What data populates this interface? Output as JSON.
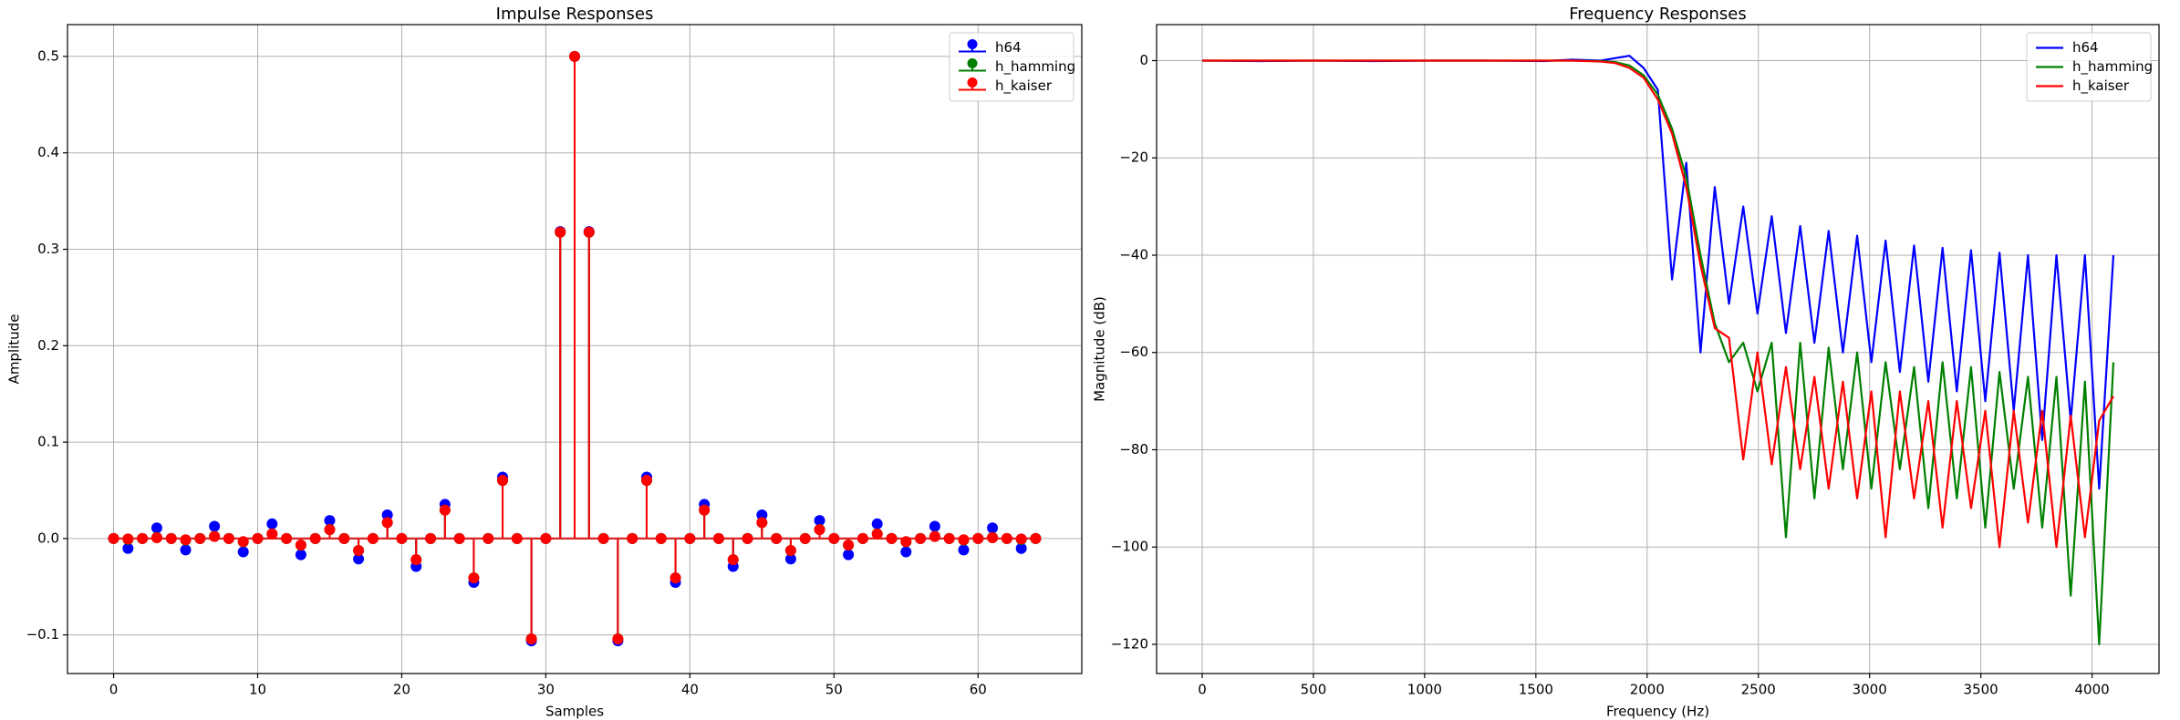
{
  "chart_data": [
    {
      "type": "stem",
      "title": "Impulse Responses",
      "xlabel": "Samples",
      "ylabel": "Amplitude",
      "x": [
        0,
        1,
        2,
        3,
        4,
        5,
        6,
        7,
        8,
        9,
        10,
        11,
        12,
        13,
        14,
        15,
        16,
        17,
        18,
        19,
        20,
        21,
        22,
        23,
        24,
        25,
        26,
        27,
        28,
        29,
        30,
        31,
        32,
        33,
        34,
        35,
        36,
        37,
        38,
        39,
        40,
        41,
        42,
        43,
        44,
        45,
        46,
        47,
        48,
        49,
        50,
        51,
        52,
        53,
        54,
        55,
        56,
        57,
        58,
        59,
        60,
        61,
        62,
        63,
        64
      ],
      "series": [
        {
          "name": "h64",
          "color": "#0000ff",
          "values": [
            0,
            -0.0103,
            0,
            0.011,
            0,
            -0.0118,
            0,
            0.0127,
            0,
            -0.0138,
            0,
            0.0152,
            0,
            -0.0168,
            0,
            0.0187,
            0,
            -0.0212,
            0,
            0.0245,
            0,
            -0.0289,
            0,
            0.0354,
            0,
            -0.0455,
            0,
            0.0637,
            0,
            -0.1061,
            0,
            0.3183,
            0.5,
            0.3183,
            0,
            -0.1061,
            0,
            0.0637,
            0,
            -0.0455,
            0,
            0.0354,
            0,
            -0.0289,
            0,
            0.0245,
            0,
            -0.0212,
            0,
            0.0187,
            0,
            -0.0168,
            0,
            0.0152,
            0,
            -0.0138,
            0,
            0.0127,
            0,
            -0.0118,
            0,
            0.011,
            0,
            -0.0103,
            0
          ]
        },
        {
          "name": "h_hamming",
          "color": "#008000",
          "values": [
            0,
            -0.0009,
            0,
            0.0011,
            0,
            -0.0016,
            0,
            0.0023,
            0,
            -0.0034,
            0,
            0.0049,
            0,
            -0.0068,
            0,
            0.0093,
            0,
            -0.0124,
            0,
            0.0165,
            0,
            -0.0219,
            0,
            0.0294,
            0,
            -0.0407,
            0,
            0.0602,
            0,
            -0.104,
            0,
            0.3176,
            0.5,
            0.3176,
            0,
            -0.104,
            0,
            0.0602,
            0,
            -0.0407,
            0,
            0.0294,
            0,
            -0.0219,
            0,
            0.0165,
            0,
            -0.0124,
            0,
            0.0093,
            0,
            -0.0068,
            0,
            0.0049,
            0,
            -0.0034,
            0,
            0.0023,
            0,
            -0.0016,
            0,
            0.0011,
            0,
            -0.0009,
            0
          ]
        },
        {
          "name": "h_kaiser",
          "color": "#ff0000",
          "values": [
            0,
            -0.0005,
            0,
            0.0008,
            0,
            -0.0013,
            0,
            0.0021,
            0,
            -0.0032,
            0,
            0.0047,
            0,
            -0.0067,
            0,
            0.0092,
            0,
            -0.0124,
            0,
            0.0166,
            0,
            -0.022,
            0,
            0.0296,
            0,
            -0.0409,
            0,
            0.0604,
            0,
            -0.1042,
            0,
            0.3177,
            0.5,
            0.3177,
            0,
            -0.1042,
            0,
            0.0604,
            0,
            -0.0409,
            0,
            0.0296,
            0,
            -0.022,
            0,
            0.0166,
            0,
            -0.0124,
            0,
            0.0092,
            0,
            -0.0067,
            0,
            0.0047,
            0,
            -0.0032,
            0,
            0.0021,
            0,
            -0.0013,
            0,
            0.0008,
            0,
            -0.0005,
            0
          ]
        }
      ],
      "xlim": [
        -3.2,
        67.2
      ],
      "xticks": [
        0,
        10,
        20,
        30,
        40,
        50,
        60
      ],
      "ylim": [
        -0.14,
        0.533
      ],
      "yticks": [
        {
          "value": -0.1,
          "label": "−0.1"
        },
        {
          "value": 0,
          "label": "0.0"
        },
        0.1,
        0.2,
        0.3,
        0.4,
        0.5
      ],
      "grid": true,
      "legend": "upper right"
    },
    {
      "type": "line",
      "title": "Frequency Responses",
      "xlabel": "Frequency (Hz)",
      "ylabel": "Magnitude (dB)",
      "x": [
        0,
        256,
        512,
        768,
        1024,
        1280,
        1536,
        1664,
        1792,
        1856,
        1920,
        1984,
        2048,
        2112,
        2176,
        2240,
        2304,
        2368,
        2432,
        2496,
        2560,
        2624,
        2688,
        2752,
        2816,
        2880,
        2944,
        3008,
        3072,
        3136,
        3200,
        3264,
        3328,
        3392,
        3456,
        3520,
        3584,
        3648,
        3712,
        3776,
        3840,
        3904,
        3968,
        4032,
        4096
      ],
      "series": [
        {
          "name": "h64",
          "color": "#0000ff",
          "values": [
            0,
            -0.1,
            0,
            -0.1,
            0,
            0,
            -0.1,
            0.2,
            0,
            0.5,
            1,
            -1.5,
            -6,
            -45,
            -21,
            -60,
            -26,
            -50,
            -30,
            -52,
            -32,
            -56,
            -34,
            -58,
            -35,
            -60,
            -36,
            -62,
            -37,
            -64,
            -38,
            -66,
            -38.5,
            -68,
            -39,
            -70,
            -39.5,
            -72,
            -40,
            -78,
            -40,
            -74,
            -40,
            -88,
            -40
          ]
        },
        {
          "name": "h_hamming",
          "color": "#008000",
          "values": [
            0,
            0,
            0,
            0,
            0,
            0,
            0,
            0,
            -0.1,
            -0.3,
            -1,
            -3,
            -7,
            -14,
            -24,
            -40,
            -54,
            -62,
            -58,
            -68,
            -58,
            -98,
            -58,
            -90,
            -59,
            -84,
            -60,
            -88,
            -62,
            -84,
            -63,
            -92,
            -62,
            -90,
            -63,
            -96,
            -64,
            -88,
            -65,
            -96,
            -65,
            -110,
            -66,
            -120,
            -62
          ]
        },
        {
          "name": "h_kaiser",
          "color": "#ff0000",
          "values": [
            0,
            0,
            0,
            0,
            0,
            0,
            0,
            0,
            -0.2,
            -0.5,
            -1.5,
            -3.5,
            -8,
            -15,
            -26,
            -42,
            -55,
            -57,
            -82,
            -60,
            -83,
            -63,
            -84,
            -65,
            -88,
            -66,
            -90,
            -68,
            -98,
            -68,
            -90,
            -70,
            -96,
            -70,
            -92,
            -72,
            -100,
            -72,
            -95,
            -72,
            -100,
            -73,
            -98,
            -74,
            -69
          ]
        }
      ],
      "xlim": [
        -205,
        4301
      ],
      "xticks": [
        0,
        500,
        1000,
        1500,
        2000,
        2500,
        3000,
        3500,
        4000
      ],
      "ylim": [
        -126,
        7.4
      ],
      "yticks": [
        {
          "value": -120,
          "label": "−120"
        },
        {
          "value": -100,
          "label": "−100"
        },
        {
          "value": -80,
          "label": "−80"
        },
        {
          "value": -60,
          "label": "−60"
        },
        {
          "value": -40,
          "label": "−40"
        },
        {
          "value": -20,
          "label": "−20"
        },
        0
      ],
      "grid": true,
      "legend": "upper right"
    }
  ]
}
